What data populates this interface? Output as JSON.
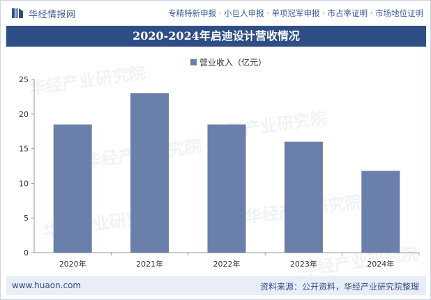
{
  "header": {
    "logo_text": "华经情报网",
    "links": "专精特新申报 · 小巨人申报 · 单项冠军申报 · 市占率证明 · 市场地位证明"
  },
  "colors": {
    "brand": "#2f4e86",
    "bar": "#6a7fa9",
    "axis": "#999999"
  },
  "chart_data": {
    "type": "bar",
    "title": "2020-2024年启迪设计营收情况",
    "categories": [
      "2020年",
      "2021年",
      "2022年",
      "2023年",
      "2024年"
    ],
    "series": [
      {
        "name": "营业收入（亿元）",
        "values": [
          18.5,
          23.0,
          18.5,
          16.0,
          11.8
        ]
      }
    ],
    "ylim": [
      0,
      25
    ],
    "yticks": [
      0,
      5,
      10,
      15,
      20,
      25
    ],
    "grid": false,
    "legend": "top-center"
  },
  "footer": {
    "site": "www.huaon.com",
    "source": "资料来源：公开资料，华经产业研究院整理"
  },
  "watermark": {
    "text": "华经产业研究院",
    "url": "www.huaon.com"
  }
}
